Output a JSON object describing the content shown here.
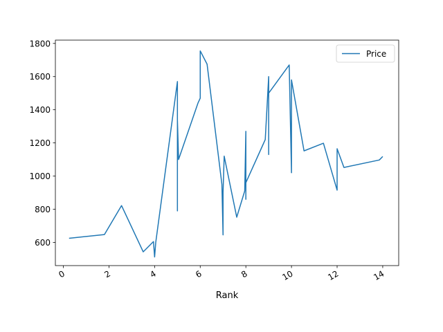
{
  "chart_data": {
    "type": "line",
    "title": "",
    "xlabel": "Rank",
    "ylabel": "",
    "xlim": [
      -0.35,
      14.7
    ],
    "ylim": [
      460,
      1820
    ],
    "x_ticks": [
      0,
      2,
      4,
      6,
      8,
      10,
      12,
      14
    ],
    "y_ticks": [
      600,
      800,
      1000,
      1200,
      1400,
      1600,
      1800
    ],
    "x_tick_rotation_deg": 30,
    "grid": false,
    "legend": {
      "location": "upper right"
    },
    "series": [
      {
        "name": "Price",
        "color": "#1f77b4",
        "points": [
          [
            0.25,
            625
          ],
          [
            1.8,
            647
          ],
          [
            2.55,
            822
          ],
          [
            3.5,
            543
          ],
          [
            3.95,
            605
          ],
          [
            4.0,
            512
          ],
          [
            4.05,
            600
          ],
          [
            5.0,
            1570
          ],
          [
            5.0,
            790
          ],
          [
            5.0,
            1340
          ],
          [
            5.05,
            1100
          ],
          [
            5.9,
            1440
          ],
          [
            6.0,
            1470
          ],
          [
            6.0,
            1755
          ],
          [
            6.3,
            1675
          ],
          [
            6.95,
            950
          ],
          [
            7.0,
            645
          ],
          [
            7.0,
            900
          ],
          [
            7.05,
            1120
          ],
          [
            7.6,
            752
          ],
          [
            7.95,
            910
          ],
          [
            8.0,
            1270
          ],
          [
            8.0,
            860
          ],
          [
            8.0,
            960
          ],
          [
            8.85,
            1220
          ],
          [
            9.0,
            1600
          ],
          [
            9.0,
            1130
          ],
          [
            9.0,
            1500
          ],
          [
            9.9,
            1670
          ],
          [
            10.0,
            1020
          ],
          [
            10.0,
            1580
          ],
          [
            10.55,
            1152
          ],
          [
            11.4,
            1198
          ],
          [
            12.0,
            915
          ],
          [
            12.0,
            1165
          ],
          [
            12.3,
            1052
          ],
          [
            13.85,
            1097
          ],
          [
            14.0,
            1118
          ]
        ]
      }
    ]
  }
}
